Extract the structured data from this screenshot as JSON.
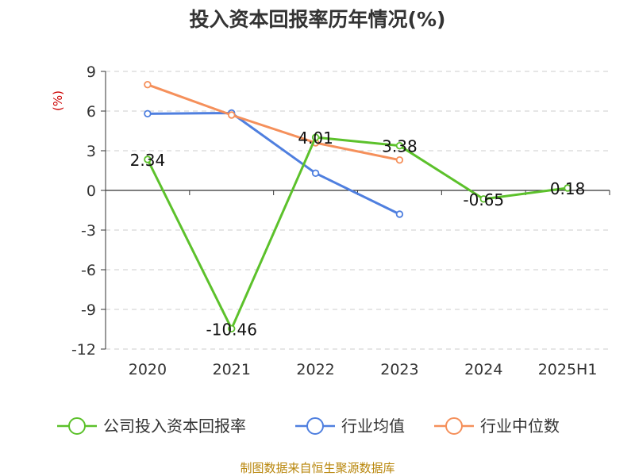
{
  "chart_data": {
    "type": "line",
    "title": "投入资本回报率历年情况(%)",
    "ylabel": "(%)",
    "categories": [
      "2020",
      "2021",
      "2022",
      "2023",
      "2024",
      "2025H1"
    ],
    "ylim": [
      -12,
      9
    ],
    "yticks": [
      9,
      6,
      3,
      0,
      -3,
      -6,
      -9,
      -12
    ],
    "grid": true,
    "legend_position": "bottom",
    "series": [
      {
        "name": "公司投入资本回报率",
        "color": "#5cc12b",
        "values": [
          2.34,
          -10.46,
          4.01,
          3.38,
          -0.65,
          0.18
        ],
        "labels": [
          "2.34",
          "-10.46",
          "4.01",
          "3.38",
          "-0.65",
          "0.18"
        ]
      },
      {
        "name": "行业均值",
        "color": "#4f7fdf",
        "values": [
          5.8,
          5.85,
          1.3,
          -1.8,
          null,
          null
        ]
      },
      {
        "name": "行业中位数",
        "color": "#f5905b",
        "values": [
          8.0,
          5.7,
          3.6,
          2.3,
          null,
          null
        ]
      }
    ]
  },
  "source": "制图数据来自恒生聚源数据库"
}
